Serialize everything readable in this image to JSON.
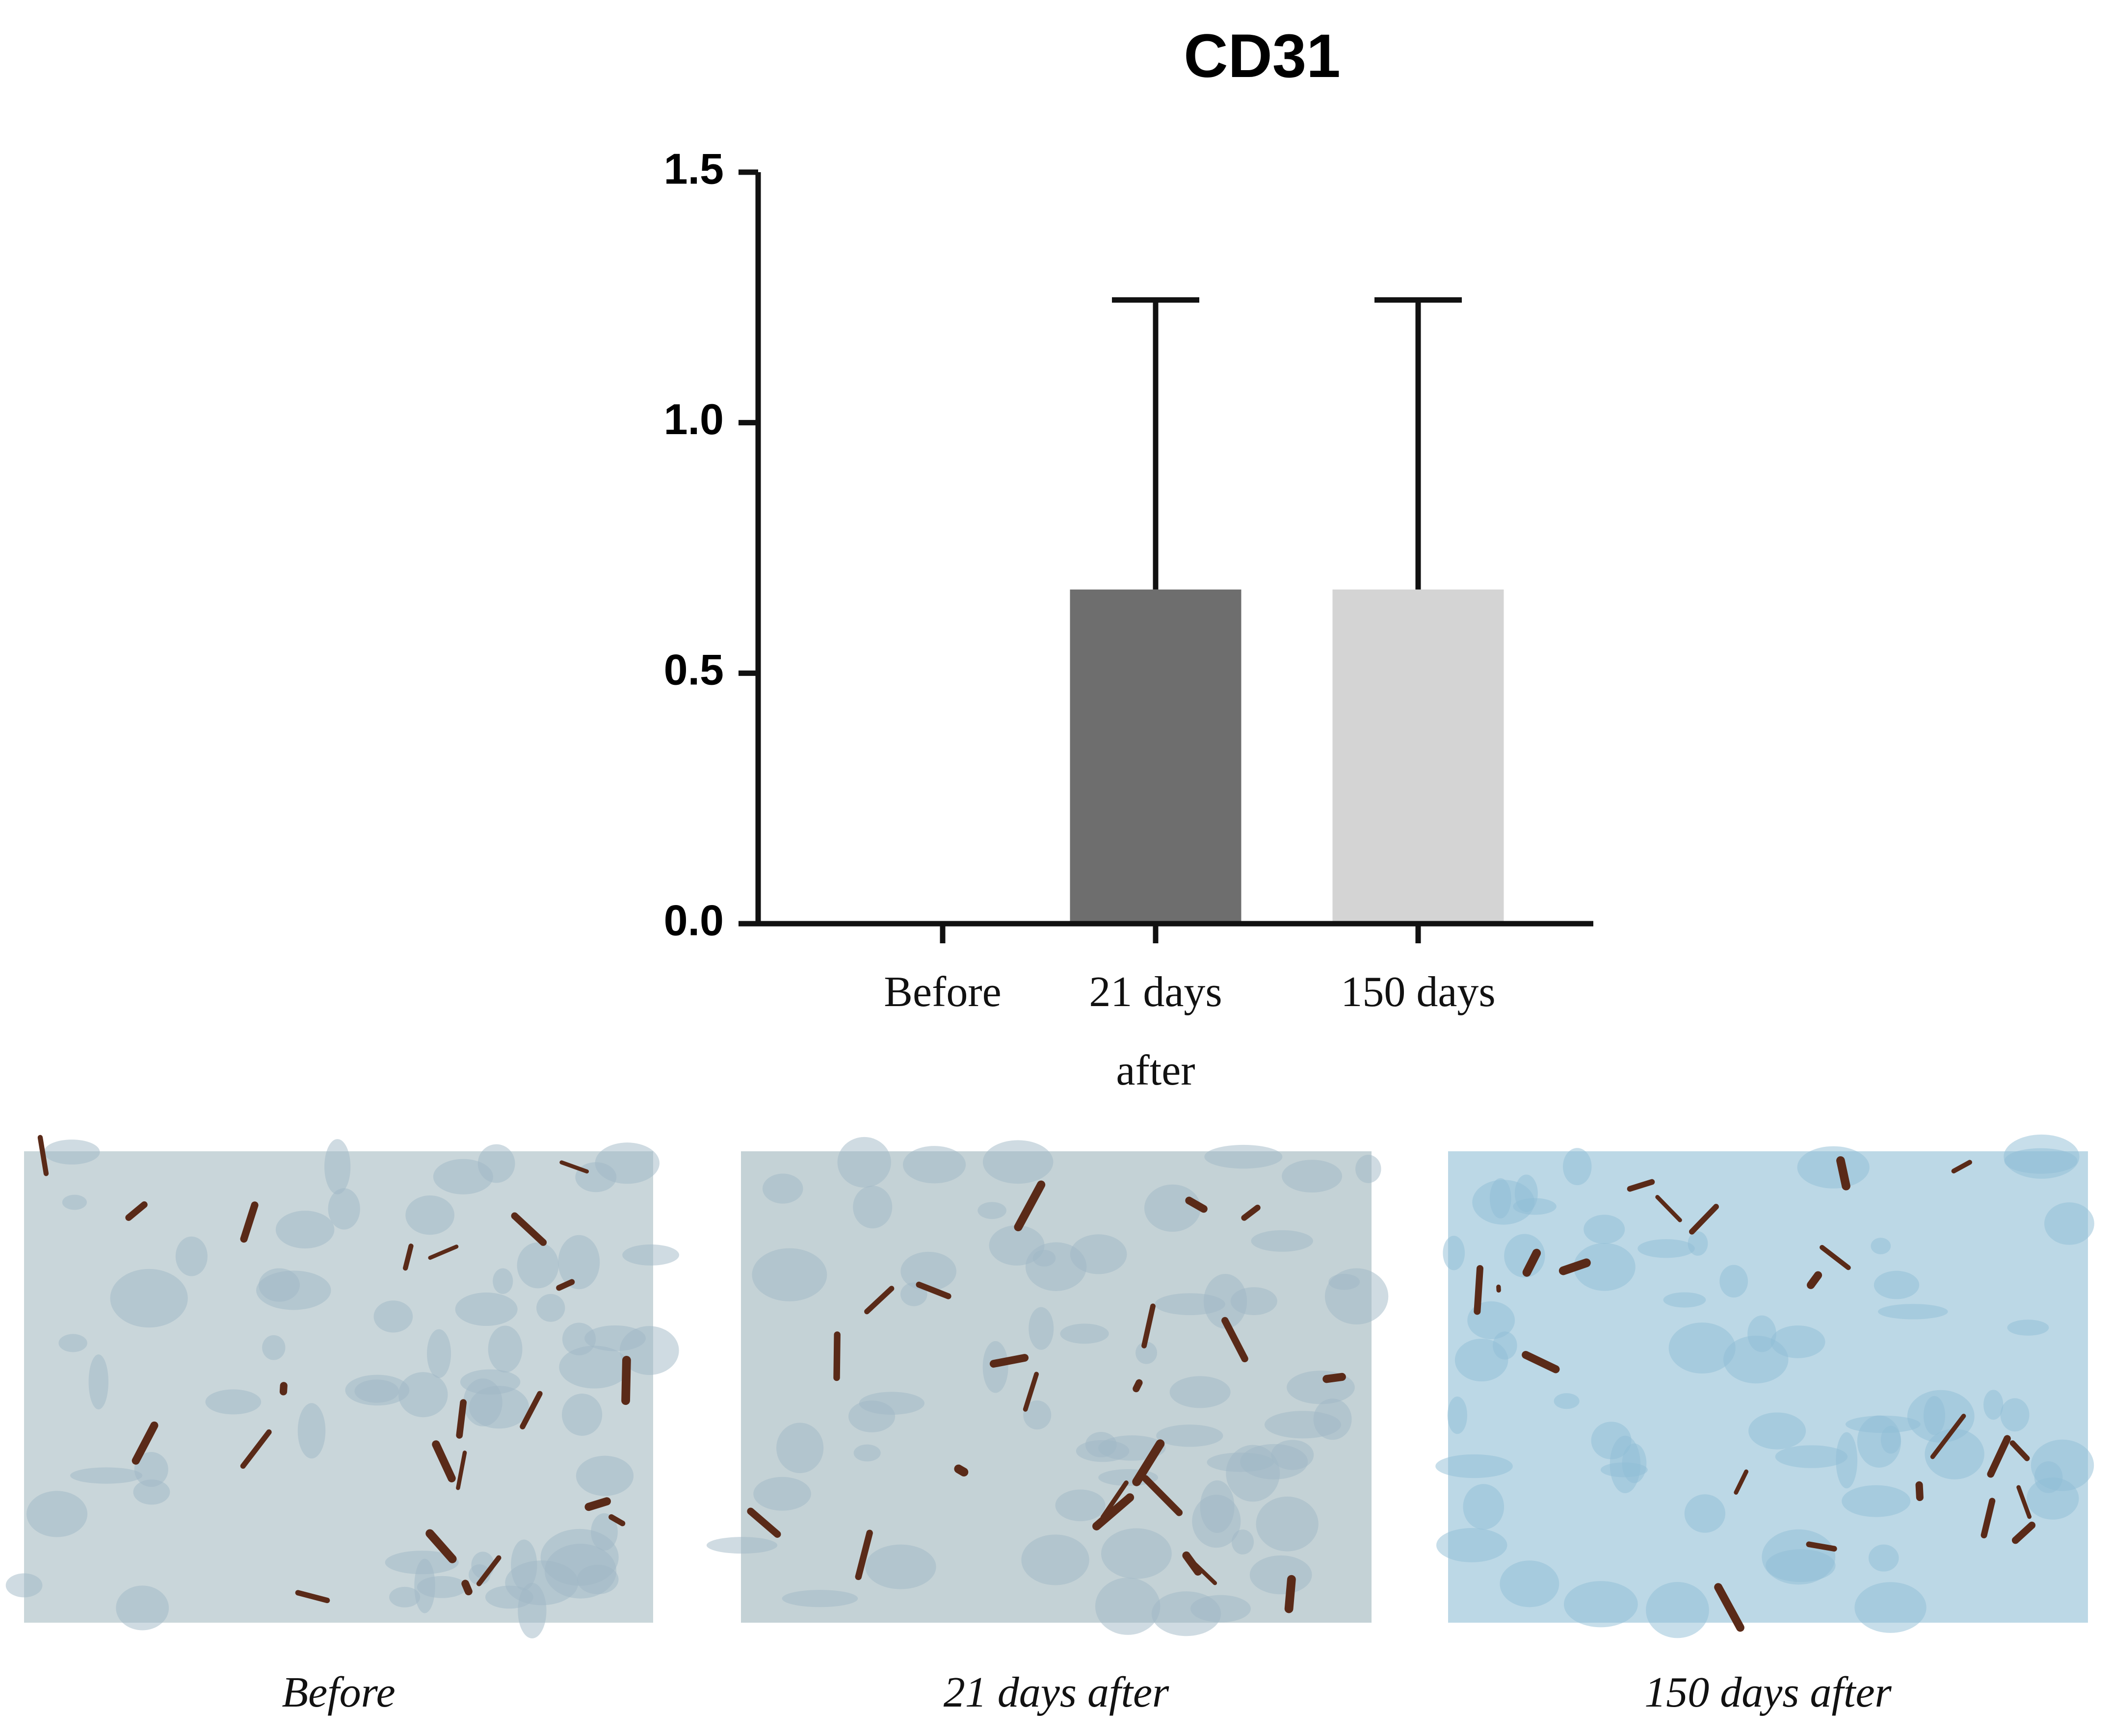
{
  "chart_data": {
    "type": "bar",
    "title": "CD31",
    "categories": [
      "Before",
      "21 days after",
      "150 days"
    ],
    "values": [
      0,
      0.667,
      0.667
    ],
    "errors": [
      0,
      0.578,
      0.578
    ],
    "colors": [
      "#ffffff",
      "#6e6e6e",
      "#d4d4d4"
    ],
    "ylim": [
      0,
      1.5
    ],
    "yticks": [
      {
        "value": 0,
        "label": "0.0"
      },
      0.5,
      {
        "value": 1,
        "label": "1.0"
      },
      1.5
    ]
  },
  "micrographs": [
    {
      "caption": "Before"
    },
    {
      "caption": "21 days after"
    },
    {
      "caption": "150 days after"
    }
  ]
}
